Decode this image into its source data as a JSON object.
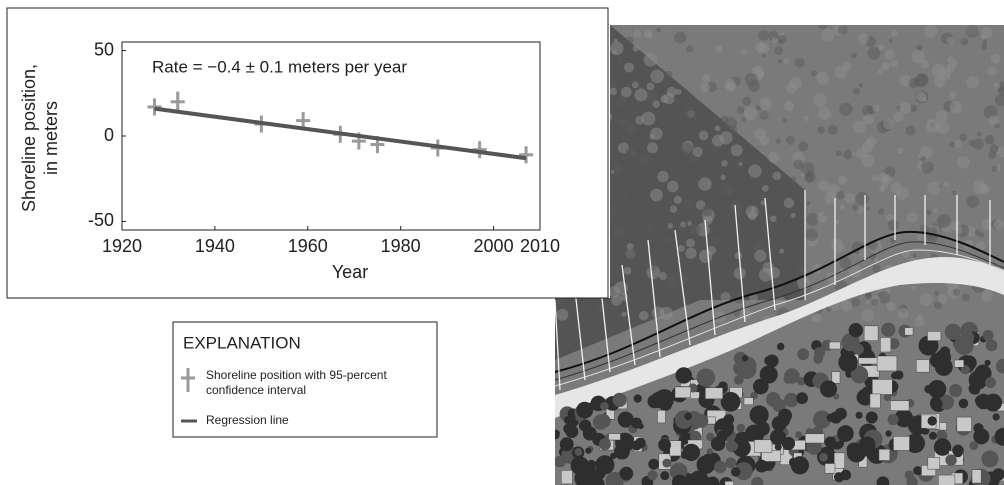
{
  "chart_data": {
    "type": "scatter",
    "annotation": "Rate = −0.4  ± 0.1 meters per year",
    "xlabel": "Year",
    "ylabel": [
      "Shoreline position,",
      "in meters"
    ],
    "xlim": [
      1920,
      2010
    ],
    "xticks": [
      1920,
      1940,
      1960,
      1980,
      2000,
      2010
    ],
    "ylim": [
      -55,
      55
    ],
    "yticks": [
      -50,
      0,
      50
    ],
    "x": [
      1927,
      1932,
      1950,
      1959,
      1967,
      1971,
      1975,
      1988,
      1997,
      2007
    ],
    "series": [
      {
        "name": "Shoreline position with 95-percent confidence interval",
        "color": "#9a9a9a",
        "values": [
          17,
          20,
          7,
          9,
          1,
          -3,
          -5,
          -7,
          -8,
          -11
        ],
        "errors": [
          5,
          6,
          5,
          5,
          5,
          5,
          5,
          5,
          5,
          5
        ]
      }
    ],
    "regression": {
      "name": "Regression line",
      "color": "#555555",
      "x": [
        1927,
        2007
      ],
      "values": [
        16,
        -13
      ]
    },
    "legend_title": "EXPLANATION"
  }
}
